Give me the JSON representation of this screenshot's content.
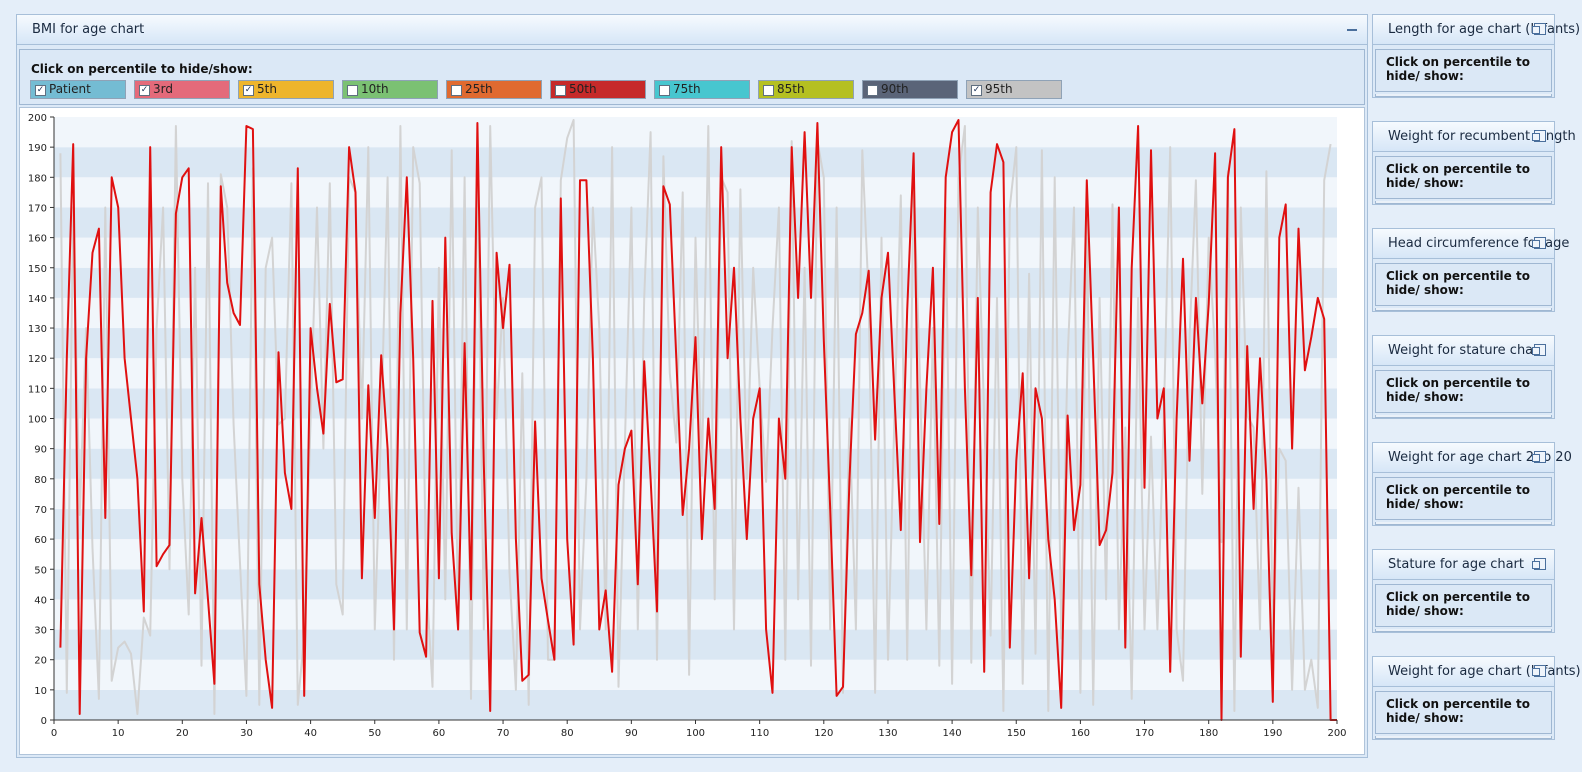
{
  "main_panel": {
    "title": "BMI for age chart",
    "legend_prompt": "Click on percentile to hide/show:",
    "legend": [
      {
        "label": "Patient",
        "checked": true,
        "color": "#74bcd3"
      },
      {
        "label": "3rd",
        "checked": true,
        "color": "#e46a7a"
      },
      {
        "label": "5th",
        "checked": true,
        "color": "#eeb52c"
      },
      {
        "label": "10th",
        "checked": false,
        "color": "#7bc173"
      },
      {
        "label": "25th",
        "checked": false,
        "color": "#e06a30"
      },
      {
        "label": "50th",
        "checked": false,
        "color": "#c62a2a"
      },
      {
        "label": "75th",
        "checked": false,
        "color": "#47c6cf"
      },
      {
        "label": "85th",
        "checked": false,
        "color": "#b5c021"
      },
      {
        "label": "90th",
        "checked": false,
        "color": "#5a6478"
      },
      {
        "label": "95th",
        "checked": true,
        "color": "#c3c3c3"
      }
    ]
  },
  "chart_data": {
    "type": "line",
    "xlim": [
      0,
      200
    ],
    "ylim": [
      0,
      200
    ],
    "x_ticks": [
      0,
      10,
      20,
      30,
      40,
      50,
      60,
      70,
      80,
      90,
      100,
      110,
      120,
      130,
      140,
      150,
      160,
      170,
      180,
      190,
      200
    ],
    "y_ticks": [
      0,
      10,
      20,
      30,
      40,
      50,
      60,
      70,
      80,
      90,
      100,
      110,
      120,
      130,
      140,
      150,
      160,
      170,
      180,
      190,
      200
    ],
    "grid": "alternating horizontal bands",
    "series": [
      {
        "color": "#e01010",
        "x": [
          1,
          2,
          3,
          4,
          5,
          6,
          7,
          8,
          9,
          10,
          11,
          12,
          13,
          14,
          15,
          16,
          17,
          18,
          19,
          20,
          21,
          22,
          23,
          24,
          25,
          26,
          27,
          28,
          29,
          30,
          31,
          32,
          33,
          34,
          35,
          36,
          37,
          38,
          39,
          40,
          41,
          42,
          43,
          44,
          45,
          46,
          47,
          48,
          49,
          50,
          51,
          52,
          53,
          54,
          55,
          56,
          57,
          58,
          59,
          60,
          61,
          62,
          63,
          64,
          65,
          66,
          67,
          68,
          69,
          70,
          71,
          72,
          73,
          74,
          75,
          76,
          77,
          78,
          79,
          80,
          81,
          82,
          83,
          84,
          85,
          86,
          87,
          88,
          89,
          90,
          91,
          92,
          93,
          94,
          95,
          96,
          97,
          98,
          99,
          100,
          101,
          102,
          103,
          104,
          105,
          106,
          107,
          108,
          109,
          110,
          111,
          112,
          113,
          114,
          115,
          116,
          117,
          118,
          119,
          120,
          121,
          122,
          123,
          124,
          125,
          126,
          127,
          128,
          129,
          130,
          131,
          132,
          133,
          134,
          135,
          136,
          137,
          138,
          139,
          140,
          141,
          142,
          143,
          144,
          145,
          146,
          147,
          148,
          149,
          150,
          151,
          152,
          153,
          154,
          155,
          156,
          157,
          158,
          159,
          160,
          161,
          162,
          163,
          164,
          165,
          166,
          167,
          168,
          169,
          170,
          171,
          172,
          173,
          174,
          175,
          176,
          177,
          178,
          179,
          180,
          181,
          182,
          183,
          184,
          185,
          186,
          187,
          188,
          189,
          190,
          191,
          192,
          193,
          194,
          195,
          196,
          197,
          198,
          199,
          200
        ],
        "y": [
          24,
          120,
          191,
          2,
          120,
          155,
          163,
          67,
          180,
          170,
          120,
          100,
          80,
          36,
          190,
          51,
          55,
          58,
          168,
          180,
          183,
          42,
          67,
          40,
          12,
          177,
          145,
          135,
          131,
          197,
          196,
          45,
          20,
          4,
          122,
          82,
          70,
          183,
          8,
          130,
          110,
          95,
          138,
          112,
          113,
          190,
          175,
          47,
          111,
          67,
          121,
          90,
          30,
          135,
          180,
          120,
          29,
          21,
          139,
          47,
          160,
          62,
          30,
          125,
          40,
          198,
          85,
          3,
          155,
          130,
          151,
          60,
          13,
          15,
          99,
          47,
          33,
          20,
          173,
          60,
          25,
          179,
          179,
          120,
          30,
          43,
          16,
          78,
          90,
          96,
          45,
          119,
          80,
          36,
          177,
          171,
          120,
          68,
          90,
          127,
          60,
          100,
          70,
          190,
          120,
          150,
          100,
          60,
          100,
          110,
          30,
          9,
          100,
          80,
          190,
          140,
          195,
          140,
          198,
          126,
          70,
          8,
          11,
          80,
          128,
          135,
          149,
          93,
          140,
          155,
          108,
          63,
          136,
          188,
          59,
          110,
          150,
          65,
          180,
          195,
          199,
          110,
          48,
          140,
          16,
          175,
          191,
          185,
          24,
          86,
          115,
          47,
          110,
          100,
          60,
          40,
          4,
          101,
          63,
          78,
          179,
          120,
          58,
          63,
          82,
          170,
          24,
          150,
          197,
          77,
          189,
          100,
          110,
          16,
          100,
          153,
          86,
          140,
          105,
          138,
          188,
          0,
          180,
          196,
          21,
          124,
          70,
          120,
          80,
          6,
          160,
          171,
          90,
          163,
          116,
          127,
          140,
          133,
          0,
          0
        ]
      },
      {
        "color": "#d3d3d3",
        "x": [
          1,
          2,
          3,
          4,
          5,
          6,
          7,
          8,
          9,
          10,
          11,
          12,
          13,
          14,
          15,
          16,
          17,
          18,
          19,
          20,
          21,
          22,
          23,
          24,
          25,
          26,
          27,
          28,
          29,
          30,
          31,
          32,
          33,
          34,
          35,
          36,
          37,
          38,
          39,
          40,
          41,
          42,
          43,
          44,
          45,
          46,
          47,
          48,
          49,
          50,
          51,
          52,
          53,
          54,
          55,
          56,
          57,
          58,
          59,
          60,
          61,
          62,
          63,
          64,
          65,
          66,
          67,
          68,
          69,
          70,
          71,
          72,
          73,
          74,
          75,
          76,
          77,
          78,
          79,
          80,
          81,
          82,
          83,
          84,
          85,
          86,
          87,
          88,
          89,
          90,
          91,
          92,
          93,
          94,
          95,
          96,
          97,
          98,
          99,
          100,
          101,
          102,
          103,
          104,
          105,
          106,
          107,
          108,
          109,
          110,
          111,
          112,
          113,
          114,
          115,
          116,
          117,
          118,
          119,
          120,
          121,
          122,
          123,
          124,
          125,
          126,
          127,
          128,
          129,
          130,
          131,
          132,
          133,
          134,
          135,
          136,
          137,
          138,
          139,
          140,
          141,
          142,
          143,
          144,
          145,
          146,
          147,
          148,
          149,
          150,
          151,
          152,
          153,
          154,
          155,
          156,
          157,
          158,
          159,
          160,
          161,
          162,
          163,
          164,
          165,
          166,
          167,
          168,
          169,
          170,
          171,
          172,
          173,
          174,
          175,
          176,
          177,
          178,
          179,
          180,
          181,
          182,
          183,
          184,
          185,
          186,
          187,
          188,
          189,
          190,
          191,
          192,
          193,
          194,
          195,
          196,
          197,
          198,
          199
        ],
        "y": [
          188,
          9,
          170,
          68,
          130,
          57,
          7,
          170,
          13,
          24,
          26,
          22,
          2,
          34,
          28,
          130,
          170,
          50,
          197,
          80,
          35,
          150,
          18,
          178,
          2,
          181,
          170,
          98,
          52,
          8,
          183,
          5,
          150,
          160,
          98,
          100,
          178,
          5,
          28,
          100,
          170,
          90,
          178,
          45,
          35,
          180,
          175,
          100,
          190,
          30,
          98,
          180,
          20,
          197,
          30,
          190,
          178,
          47,
          11,
          150,
          40,
          189,
          30,
          180,
          7,
          190,
          30,
          197,
          100,
          140,
          49,
          10,
          115,
          5,
          170,
          180,
          20,
          20,
          179,
          193,
          199,
          30,
          80,
          170,
          130,
          30,
          190,
          11,
          92,
          170,
          30,
          140,
          195,
          20,
          187,
          115,
          92,
          175,
          15,
          160,
          81,
          197,
          40,
          180,
          175,
          30,
          176,
          80,
          150,
          110,
          79,
          130,
          170,
          20,
          192,
          40,
          150,
          18,
          192,
          180,
          30,
          170,
          9,
          100,
          30,
          189,
          140,
          9,
          160,
          20,
          100,
          174,
          20,
          180,
          113,
          30,
          130,
          18,
          170,
          12,
          180,
          197,
          19,
          170,
          101,
          28,
          140,
          3,
          170,
          190,
          12,
          148,
          22,
          189,
          3,
          180,
          27,
          120,
          170,
          9,
          168,
          5,
          140,
          40,
          171,
          30,
          97,
          7,
          140,
          30,
          94,
          30,
          100,
          190,
          30,
          13,
          126,
          179,
          75,
          160,
          122,
          59,
          182,
          3,
          170,
          101,
          97,
          30,
          182,
          26,
          90,
          86,
          10,
          77,
          10,
          20,
          4,
          179,
          191
        ]
      }
    ]
  },
  "side_panels": [
    {
      "title": "Length for age chart (Infants)",
      "prompt": "Click on percentile to hide/ show:"
    },
    {
      "title": "Weight for recumbent length",
      "prompt": "Click on percentile to hide/ show:"
    },
    {
      "title": "Head circumference for age",
      "prompt": "Click on percentile to hide/ show:"
    },
    {
      "title": "Weight for stature chart",
      "prompt": "Click on percentile to hide/ show:"
    },
    {
      "title": "Weight for age chart 2 to 20",
      "prompt": "Click on percentile to hide/ show:"
    },
    {
      "title": "Stature for age chart",
      "prompt": "Click on percentile to hide/ show:"
    },
    {
      "title": "Weight for age chart (Infants)",
      "prompt": "Click on percentile to hide/ show:"
    }
  ]
}
